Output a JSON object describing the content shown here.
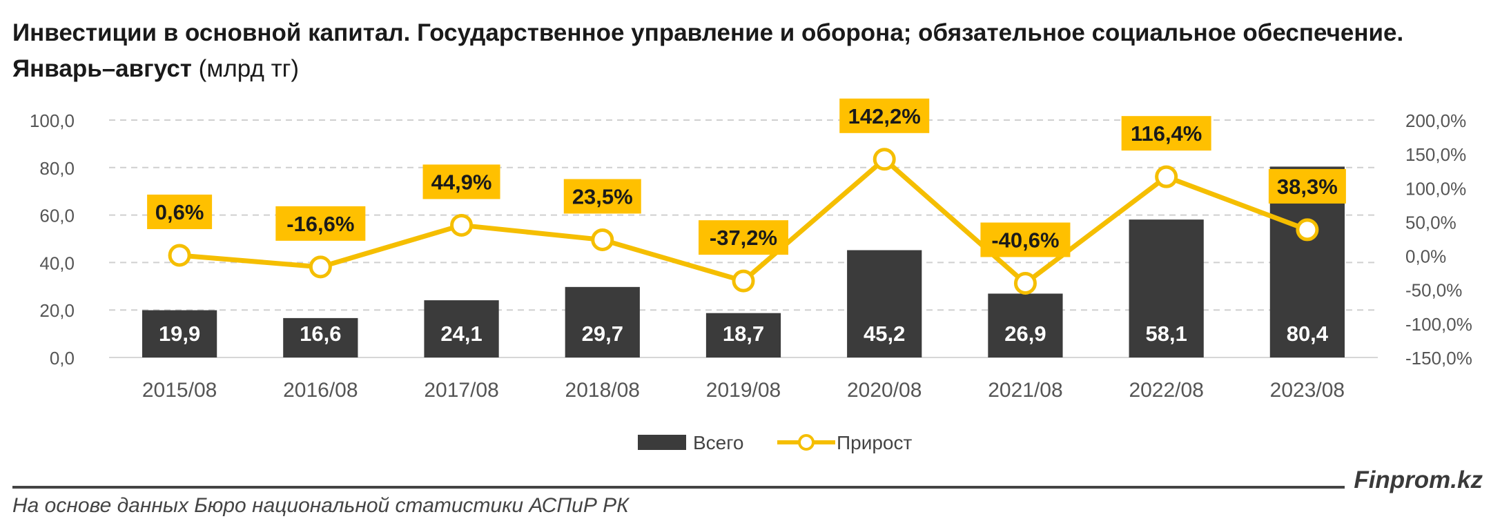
{
  "header": {
    "title": "Инвестиции в основной капитал. Государственное управление и оборона; обязательное социальное обеспечение. Январь–август",
    "unit": "(млрд тг)"
  },
  "chart_data": {
    "type": "bar",
    "categories": [
      "2015/08",
      "2016/08",
      "2017/08",
      "2018/08",
      "2019/08",
      "2020/08",
      "2021/08",
      "2022/08",
      "2023/08"
    ],
    "series": [
      {
        "name": "Всего",
        "type": "bar",
        "axis": "left",
        "values": [
          19.9,
          16.6,
          24.1,
          29.7,
          18.7,
          45.2,
          26.9,
          58.1,
          80.4
        ],
        "labels": [
          "19,9",
          "16,6",
          "24,1",
          "29,7",
          "18,7",
          "45,2",
          "26,9",
          "58,1",
          "80,4"
        ],
        "color": "#3b3b3b"
      },
      {
        "name": "Прирост",
        "type": "line",
        "axis": "right",
        "values": [
          0.6,
          -16.6,
          44.9,
          23.5,
          -37.2,
          142.2,
          -40.6,
          116.4,
          38.3
        ],
        "labels": [
          "0,6%",
          "-16,6%",
          "44,9%",
          "23,5%",
          "-37,2%",
          "142,2%",
          "-40,6%",
          "116,4%",
          "38,3%"
        ],
        "color": "#f5be00"
      }
    ],
    "y_left": {
      "min": 0,
      "max": 100,
      "step": 20,
      "ticks": [
        "0,0",
        "20,0",
        "40,0",
        "60,0",
        "80,0",
        "100,0"
      ]
    },
    "y_right": {
      "min": -150,
      "max": 200,
      "step": 50,
      "ticks": [
        "-150,0%",
        "-100,0%",
        "-50,0%",
        "0,0%",
        "50,0%",
        "100,0%",
        "150,0%",
        "200,0%"
      ]
    },
    "grid": true,
    "legend_position": "bottom-center"
  },
  "footer": {
    "source": "На основе данных Бюро национальной статистики АСПиР РК",
    "brand": "Finprom.kz"
  }
}
